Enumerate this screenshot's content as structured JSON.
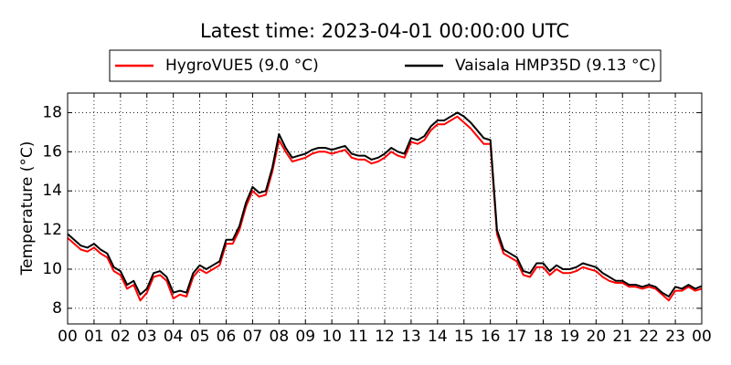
{
  "chart_data": {
    "type": "line",
    "title": "Latest time: 2023-04-01 00:00:00 UTC",
    "y_label": "Temperature (°C)",
    "legend": "top",
    "grid": true,
    "xlim": [
      0,
      24
    ],
    "xticks": [
      {
        "value": 0,
        "label": "00"
      },
      {
        "value": 1,
        "label": "01"
      },
      {
        "value": 2,
        "label": "02"
      },
      {
        "value": 3,
        "label": "03"
      },
      {
        "value": 4,
        "label": "04"
      },
      {
        "value": 5,
        "label": "05"
      },
      {
        "value": 6,
        "label": "06"
      },
      {
        "value": 7,
        "label": "07"
      },
      {
        "value": 8,
        "label": "08"
      },
      {
        "value": 9,
        "label": "09"
      },
      {
        "value": 10,
        "label": "10"
      },
      {
        "value": 11,
        "label": "11"
      },
      {
        "value": 12,
        "label": "12"
      },
      {
        "value": 13,
        "label": "13"
      },
      {
        "value": 14,
        "label": "14"
      },
      {
        "value": 15,
        "label": "15"
      },
      {
        "value": 16,
        "label": "16"
      },
      {
        "value": 17,
        "label": "17"
      },
      {
        "value": 18,
        "label": "18"
      },
      {
        "value": 19,
        "label": "19"
      },
      {
        "value": 20,
        "label": "20"
      },
      {
        "value": 21,
        "label": "21"
      },
      {
        "value": 22,
        "label": "22"
      },
      {
        "value": 23,
        "label": "23"
      },
      {
        "value": 24,
        "label": "00"
      }
    ],
    "ylim": [
      7.2,
      19.0
    ],
    "yticks": [
      8,
      10,
      12,
      14,
      16,
      18
    ],
    "x": [
      0,
      0.25,
      0.5,
      0.75,
      1,
      1.25,
      1.5,
      1.75,
      2,
      2.25,
      2.5,
      2.75,
      3,
      3.25,
      3.5,
      3.75,
      4,
      4.25,
      4.5,
      4.75,
      5,
      5.25,
      5.5,
      5.75,
      6,
      6.25,
      6.5,
      6.75,
      7,
      7.25,
      7.5,
      7.75,
      8,
      8.25,
      8.5,
      8.75,
      9,
      9.25,
      9.5,
      9.75,
      10,
      10.25,
      10.5,
      10.75,
      11,
      11.25,
      11.5,
      11.75,
      12,
      12.25,
      12.5,
      12.75,
      13,
      13.25,
      13.5,
      13.75,
      14,
      14.25,
      14.5,
      14.75,
      15,
      15.25,
      15.5,
      15.75,
      16,
      16.25,
      16.5,
      16.75,
      17,
      17.25,
      17.5,
      17.75,
      18,
      18.25,
      18.5,
      18.75,
      19,
      19.25,
      19.5,
      19.75,
      20,
      20.25,
      20.5,
      20.75,
      21,
      21.25,
      21.5,
      21.75,
      22,
      22.25,
      22.5,
      22.75,
      23,
      23.25,
      23.5,
      23.75,
      24
    ],
    "series": [
      {
        "name": "HygroVUE5 (9.0 °C)",
        "color": "#ff0000",
        "values": [
          11.6,
          11.3,
          11.0,
          10.9,
          11.1,
          10.8,
          10.6,
          9.9,
          9.7,
          9.0,
          9.2,
          8.4,
          8.8,
          9.6,
          9.7,
          9.4,
          8.5,
          8.7,
          8.6,
          9.6,
          10.0,
          9.8,
          10.0,
          10.2,
          11.3,
          11.3,
          12.0,
          13.2,
          14.0,
          13.7,
          13.8,
          15.0,
          16.6,
          16.0,
          15.5,
          15.6,
          15.7,
          15.9,
          16.0,
          16.0,
          15.9,
          16.0,
          16.1,
          15.7,
          15.6,
          15.6,
          15.4,
          15.5,
          15.7,
          16.0,
          15.8,
          15.7,
          16.5,
          16.4,
          16.6,
          17.1,
          17.4,
          17.4,
          17.6,
          17.8,
          17.5,
          17.2,
          16.8,
          16.4,
          16.4,
          11.8,
          10.8,
          10.6,
          10.4,
          9.7,
          9.6,
          10.1,
          10.1,
          9.7,
          10.0,
          9.8,
          9.8,
          9.9,
          10.1,
          10.0,
          9.9,
          9.6,
          9.4,
          9.3,
          9.3,
          9.1,
          9.1,
          9.0,
          9.1,
          9.0,
          8.7,
          8.4,
          8.9,
          8.9,
          9.1,
          8.9,
          9.0
        ]
      },
      {
        "name": "Vaisala HMP35D (9.13 °C)",
        "color": "#000000",
        "values": [
          11.8,
          11.5,
          11.2,
          11.1,
          11.3,
          11.0,
          10.8,
          10.1,
          9.9,
          9.2,
          9.4,
          8.7,
          9.0,
          9.8,
          9.9,
          9.6,
          8.8,
          8.9,
          8.8,
          9.8,
          10.2,
          10.0,
          10.2,
          10.4,
          11.5,
          11.5,
          12.2,
          13.4,
          14.2,
          13.9,
          14.0,
          15.2,
          16.9,
          16.2,
          15.7,
          15.8,
          15.9,
          16.1,
          16.2,
          16.2,
          16.1,
          16.2,
          16.3,
          15.9,
          15.8,
          15.8,
          15.6,
          15.7,
          15.9,
          16.2,
          16.0,
          15.9,
          16.7,
          16.6,
          16.8,
          17.3,
          17.6,
          17.6,
          17.8,
          18.0,
          17.8,
          17.5,
          17.1,
          16.7,
          16.6,
          12.0,
          11.0,
          10.8,
          10.6,
          9.9,
          9.8,
          10.3,
          10.3,
          9.9,
          10.2,
          10.0,
          10.0,
          10.1,
          10.3,
          10.2,
          10.1,
          9.8,
          9.6,
          9.4,
          9.4,
          9.2,
          9.2,
          9.1,
          9.2,
          9.1,
          8.8,
          8.6,
          9.1,
          9.0,
          9.2,
          9.0,
          9.13
        ]
      }
    ]
  }
}
